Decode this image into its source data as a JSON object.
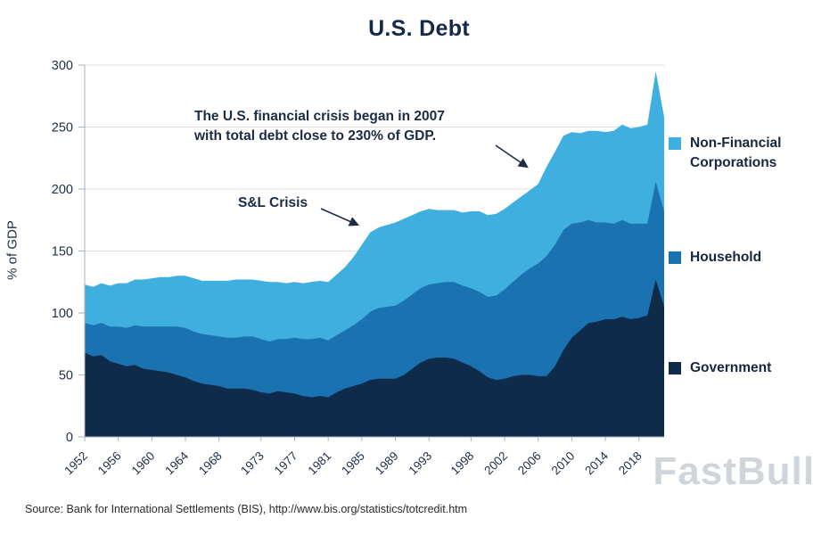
{
  "title": "U.S. Debt",
  "ylabel": "% of GDP",
  "source": "Source: Bank for International Settlements (BIS), http://www.bis.org/statistics/totcredit.htm",
  "watermark": "FastBull",
  "annotations": {
    "crisis_line1": "The U.S. financial crisis began in 2007",
    "crisis_line2": "with total debt close to 230% of GDP.",
    "sl_crisis": "S&L Crisis"
  },
  "colors": {
    "grid": "#d9dde1",
    "axis": "#aab2ba",
    "tick_text": "#1e2e47",
    "arrow": "#1d2d44"
  },
  "legend": {
    "position": "right",
    "items": [
      {
        "label": "Non-Financial Corporations",
        "color": "#3fafe0"
      },
      {
        "label": "Household",
        "color": "#1b72b0"
      },
      {
        "label": "Government",
        "color": "#0e2b49"
      }
    ]
  },
  "chart_data": {
    "type": "area",
    "stacked": true,
    "title": "U.S. Debt",
    "xlabel": "",
    "ylabel": "% of GDP",
    "ylim": [
      0,
      300
    ],
    "grid": "horizontal",
    "legend_position": "right",
    "y_ticks": [
      0,
      50,
      100,
      150,
      200,
      250,
      300
    ],
    "x_ticks": [
      1952,
      1956,
      1960,
      1964,
      1968,
      1973,
      1977,
      1981,
      1985,
      1989,
      1993,
      1998,
      2002,
      2006,
      2010,
      2014,
      2018
    ],
    "x": [
      1952,
      1953,
      1954,
      1955,
      1956,
      1957,
      1958,
      1959,
      1960,
      1961,
      1962,
      1963,
      1964,
      1965,
      1966,
      1967,
      1968,
      1969,
      1970,
      1971,
      1972,
      1973,
      1974,
      1975,
      1976,
      1977,
      1978,
      1979,
      1980,
      1981,
      1982,
      1983,
      1984,
      1985,
      1986,
      1987,
      1988,
      1989,
      1990,
      1991,
      1992,
      1993,
      1994,
      1995,
      1996,
      1997,
      1998,
      1999,
      2000,
      2001,
      2002,
      2003,
      2004,
      2005,
      2006,
      2007,
      2008,
      2009,
      2010,
      2011,
      2012,
      2013,
      2014,
      2015,
      2016,
      2017,
      2018,
      2019,
      2020,
      2021
    ],
    "series": [
      {
        "name": "Government",
        "color": "#0e2b49",
        "values": [
          68,
          65,
          66,
          61,
          59,
          57,
          58,
          55,
          54,
          53,
          52,
          50,
          48,
          45,
          43,
          42,
          41,
          39,
          39,
          39,
          38,
          36,
          35,
          37,
          36,
          35,
          33,
          32,
          33,
          32,
          36,
          39,
          41,
          43,
          46,
          47,
          47,
          47,
          50,
          55,
          60,
          63,
          64,
          64,
          63,
          60,
          57,
          53,
          48,
          46,
          47,
          49,
          50,
          50,
          49,
          49,
          57,
          70,
          80,
          86,
          92,
          93,
          95,
          95,
          97,
          95,
          96,
          98,
          127,
          105
        ]
      },
      {
        "name": "Household",
        "color": "#1b72b0",
        "values": [
          24,
          25,
          26,
          28,
          30,
          31,
          32,
          34,
          35,
          36,
          37,
          39,
          40,
          40,
          40,
          40,
          40,
          41,
          41,
          42,
          43,
          43,
          42,
          42,
          43,
          45,
          46,
          47,
          47,
          46,
          46,
          47,
          49,
          52,
          55,
          57,
          58,
          59,
          60,
          60,
          60,
          60,
          60,
          61,
          62,
          62,
          63,
          64,
          65,
          68,
          72,
          76,
          81,
          86,
          91,
          97,
          98,
          97,
          92,
          87,
          83,
          80,
          78,
          77,
          78,
          77,
          76,
          74,
          79,
          77
        ]
      },
      {
        "name": "Non-Financial Corporations",
        "color": "#3fafe0",
        "values": [
          31,
          31,
          32,
          33,
          35,
          36,
          37,
          38,
          39,
          40,
          40,
          41,
          42,
          43,
          43,
          44,
          45,
          46,
          47,
          46,
          46,
          47,
          48,
          46,
          45,
          45,
          45,
          46,
          46,
          47,
          49,
          51,
          55,
          60,
          64,
          65,
          66,
          67,
          66,
          64,
          62,
          61,
          59,
          58,
          58,
          59,
          62,
          65,
          66,
          66,
          65,
          64,
          63,
          63,
          64,
          72,
          75,
          76,
          74,
          72,
          72,
          74,
          73,
          75,
          77,
          77,
          78,
          80,
          89,
          76
        ]
      }
    ]
  }
}
